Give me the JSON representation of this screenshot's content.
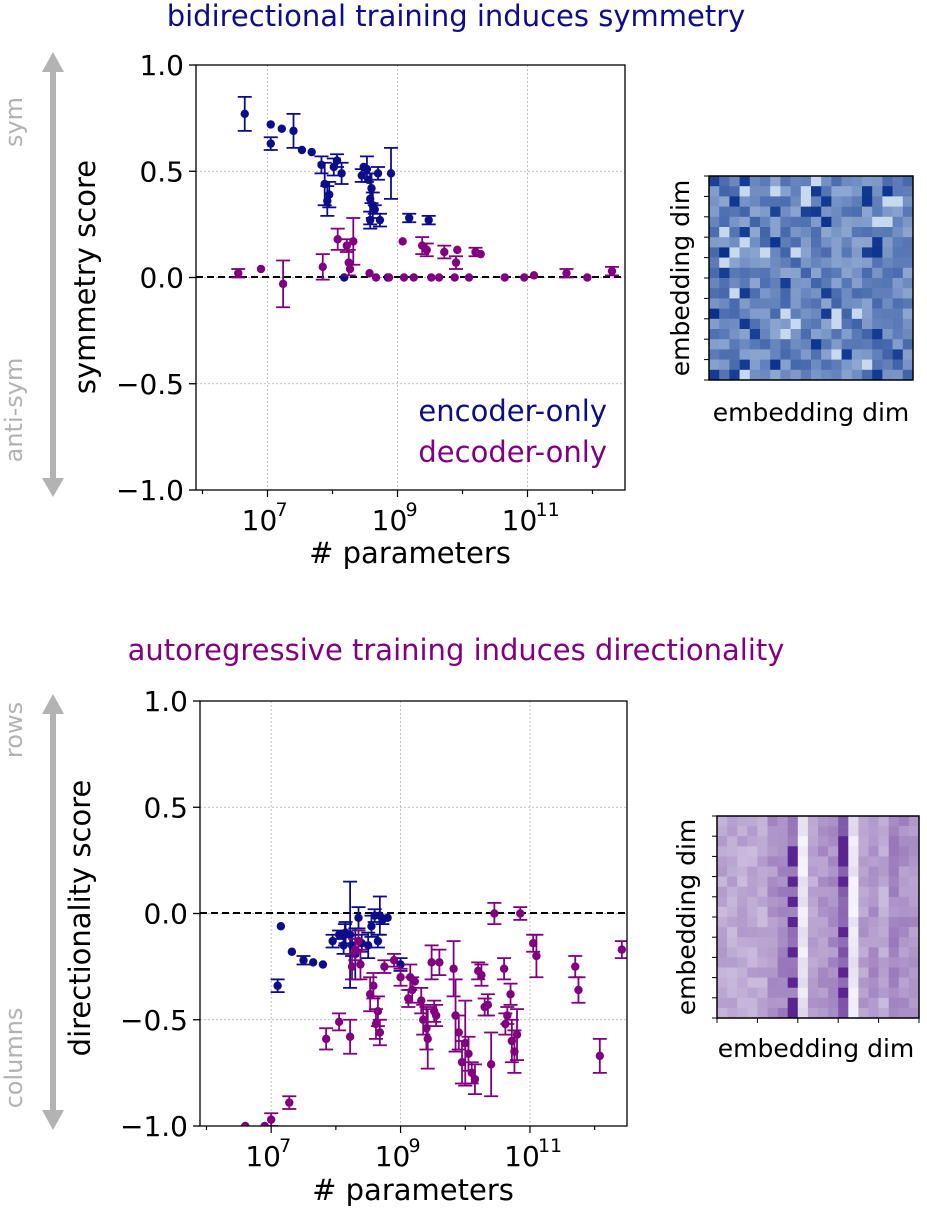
{
  "figure": {
    "top_panel": {
      "title": "bidirectional training induces symmetry",
      "title_color": "#0d0d8a",
      "side_arrow": {
        "top_label": "sym",
        "bottom_label": "anti-sym"
      },
      "heatmap": {
        "xlabel": "embedding dim",
        "ylabel": "embedding dim",
        "colormap": "Blues"
      }
    },
    "bottom_panel": {
      "title": "autoregressive training induces directionality",
      "title_color": "#800080",
      "side_arrow": {
        "top_label": "rows",
        "bottom_label": "columns"
      },
      "heatmap": {
        "xlabel": "embedding dim",
        "ylabel": "embedding dim",
        "colormap": "Purples"
      }
    },
    "colors": {
      "encoder": "#0d0d8a",
      "decoder": "#800080",
      "arrow": "#b3b3b3",
      "grid": "#b0b0b0"
    }
  },
  "chart_data": [
    {
      "type": "scatter",
      "title": "",
      "xlabel": "# parameters",
      "ylabel": "symmetry score",
      "xscale": "log",
      "xlim_log10": [
        5.9,
        12.5
      ],
      "ylim": [
        -1.0,
        1.0
      ],
      "xticks": [
        {
          "exp": 7,
          "base": "10",
          "sup": "7"
        },
        {
          "exp": 9,
          "base": "10",
          "sup": "9"
        },
        {
          "exp": 11,
          "base": "10",
          "sup": "11"
        }
      ],
      "yticks": [
        {
          "value": 1.0,
          "label": "1.0"
        },
        {
          "value": 0.5,
          "label": "0.5"
        },
        {
          "value": 0.0,
          "label": "0.0"
        },
        {
          "value": -0.5,
          "label": "−0.5"
        },
        {
          "value": -1.0,
          "label": "−1.0"
        }
      ],
      "grid": true,
      "zero_line": true,
      "legend": {
        "placement": "bottom-right",
        "style": "colored-text"
      },
      "series": [
        {
          "name": "encoder-only",
          "color": "#0d0d8a",
          "points": [
            [
              6.65,
              0.77,
              0.08
            ],
            [
              7.05,
              0.72,
              0.0
            ],
            [
              7.05,
              0.63,
              0.03
            ],
            [
              7.22,
              0.7,
              0.0
            ],
            [
              7.4,
              0.69,
              0.08
            ],
            [
              7.53,
              0.6,
              0.0
            ],
            [
              7.68,
              0.59,
              0.0
            ],
            [
              7.83,
              0.53,
              0.04
            ],
            [
              7.88,
              0.44,
              0.1
            ],
            [
              7.92,
              0.36,
              0.07
            ],
            [
              7.95,
              0.39,
              0.06
            ],
            [
              8.02,
              0.52,
              0.04
            ],
            [
              8.07,
              0.55,
              0.03
            ],
            [
              8.14,
              0.49,
              0.05
            ],
            [
              8.18,
              0.0,
              0.0
            ],
            [
              8.45,
              0.48,
              0.03
            ],
            [
              8.48,
              0.52,
              0.0
            ],
            [
              8.53,
              0.51,
              0.06
            ],
            [
              8.55,
              0.46,
              0.0
            ],
            [
              8.58,
              0.37,
              0.12
            ],
            [
              8.58,
              0.27,
              0.04
            ],
            [
              8.6,
              0.42,
              0.07
            ],
            [
              8.62,
              0.34,
              0.06
            ],
            [
              8.65,
              0.32,
              0.02
            ],
            [
              8.7,
              0.49,
              0.03
            ],
            [
              8.73,
              0.27,
              0.03
            ],
            [
              8.85,
              0.0,
              0.0
            ],
            [
              8.9,
              0.49,
              0.12
            ],
            [
              9.18,
              0.28,
              0.02
            ],
            [
              9.48,
              0.27,
              0.02
            ]
          ]
        },
        {
          "name": "decoder-only",
          "color": "#800080",
          "points": [
            [
              6.55,
              0.02,
              0.02
            ],
            [
              6.9,
              0.04,
              0.0
            ],
            [
              7.24,
              -0.03,
              0.11
            ],
            [
              7.85,
              0.05,
              0.06
            ],
            [
              8.08,
              0.18,
              0.05
            ],
            [
              8.22,
              0.15,
              0.03
            ],
            [
              8.25,
              0.07,
              0.06
            ],
            [
              8.27,
              0.04,
              0.0
            ],
            [
              8.32,
              0.17,
              0.11
            ],
            [
              8.57,
              0.02,
              0.0
            ],
            [
              8.67,
              0.0,
              0.0
            ],
            [
              8.87,
              0.0,
              0.0
            ],
            [
              9.08,
              0.17,
              0.0
            ],
            [
              9.1,
              0.0,
              0.0
            ],
            [
              9.25,
              0.0,
              0.0
            ],
            [
              9.38,
              0.15,
              0.04
            ],
            [
              9.45,
              0.13,
              0.03
            ],
            [
              9.52,
              0.0,
              0.0
            ],
            [
              9.64,
              0.0,
              0.0
            ],
            [
              9.72,
              0.12,
              0.03
            ],
            [
              9.88,
              0.0,
              0.0
            ],
            [
              9.9,
              0.07,
              0.03
            ],
            [
              9.92,
              0.13,
              0.0
            ],
            [
              10.1,
              0.0,
              0.0
            ],
            [
              10.2,
              0.12,
              0.02
            ],
            [
              10.28,
              0.11,
              0.0
            ],
            [
              10.65,
              0.0,
              0.0
            ],
            [
              10.95,
              0.0,
              0.0
            ],
            [
              11.1,
              0.01,
              0.0
            ],
            [
              11.6,
              0.02,
              0.02
            ],
            [
              11.92,
              0.0,
              0.0
            ],
            [
              12.3,
              0.03,
              0.02
            ]
          ]
        }
      ]
    },
    {
      "type": "scatter",
      "title": "",
      "xlabel": "# parameters",
      "ylabel": "directionality score",
      "xscale": "log",
      "xlim_log10": [
        5.9,
        12.5
      ],
      "ylim": [
        -1.0,
        1.0
      ],
      "xticks": [
        {
          "exp": 7,
          "base": "10",
          "sup": "7"
        },
        {
          "exp": 9,
          "base": "10",
          "sup": "9"
        },
        {
          "exp": 11,
          "base": "10",
          "sup": "11"
        }
      ],
      "yticks": [
        {
          "value": 1.0,
          "label": "1.0"
        },
        {
          "value": 0.5,
          "label": "0.5"
        },
        {
          "value": 0.0,
          "label": "0.0"
        },
        {
          "value": -0.5,
          "label": "−0.5"
        },
        {
          "value": -1.0,
          "label": "−1.0"
        }
      ],
      "grid": true,
      "zero_line": true,
      "series": [
        {
          "name": "encoder-only",
          "color": "#0d0d8a",
          "points": [
            [
              7.1,
              -0.34,
              0.03
            ],
            [
              7.15,
              -0.06,
              0.0
            ],
            [
              7.32,
              -0.18,
              0.0
            ],
            [
              7.5,
              -0.22,
              0.02
            ],
            [
              7.65,
              -0.23,
              0.0
            ],
            [
              7.8,
              -0.24,
              0.0
            ],
            [
              7.95,
              -0.13,
              0.03
            ],
            [
              8.05,
              -0.1,
              0.02
            ],
            [
              8.12,
              -0.15,
              0.04
            ],
            [
              8.14,
              -0.1,
              0.05
            ],
            [
              8.15,
              -0.09,
              0.05
            ],
            [
              8.22,
              -0.1,
              0.25
            ],
            [
              8.25,
              -0.15,
              0.05
            ],
            [
              8.3,
              -0.19,
              0.12
            ],
            [
              8.35,
              -0.02,
              0.05
            ],
            [
              8.4,
              -0.14,
              0.04
            ],
            [
              8.5,
              -0.15,
              0.06
            ],
            [
              8.55,
              -0.06,
              0.05
            ],
            [
              8.6,
              -0.01,
              0.03
            ],
            [
              8.65,
              -0.13,
              0.03
            ],
            [
              8.68,
              -0.01,
              0.09
            ],
            [
              8.72,
              -0.03,
              0.02
            ],
            [
              8.8,
              -0.02,
              0.0
            ],
            [
              9.0,
              -0.24,
              0.03
            ]
          ]
        },
        {
          "name": "decoder-only",
          "color": "#800080",
          "points": [
            [
              6.6,
              -1.0,
              0.0
            ],
            [
              6.9,
              -1.0,
              0.0
            ],
            [
              7.0,
              -0.97,
              0.03
            ],
            [
              7.28,
              -0.89,
              0.03
            ],
            [
              7.85,
              -0.59,
              0.05
            ],
            [
              8.05,
              -0.51,
              0.04
            ],
            [
              8.22,
              -0.58,
              0.08
            ],
            [
              8.25,
              -0.25,
              0.06
            ],
            [
              8.3,
              -0.17,
              0.05
            ],
            [
              8.35,
              -0.13,
              0.05
            ],
            [
              8.38,
              -0.24,
              0.07
            ],
            [
              8.53,
              -0.38,
              0.08
            ],
            [
              8.58,
              -0.34,
              0.06
            ],
            [
              8.62,
              -0.52,
              0.07
            ],
            [
              8.65,
              -0.46,
              0.07
            ],
            [
              8.68,
              -0.56,
              0.06
            ],
            [
              8.75,
              -0.25,
              0.03
            ],
            [
              8.9,
              -0.22,
              0.03
            ],
            [
              9.0,
              -0.3,
              0.04
            ],
            [
              9.12,
              -0.4,
              0.04
            ],
            [
              9.15,
              -0.3,
              0.06
            ],
            [
              9.18,
              -0.36,
              0.06
            ],
            [
              9.22,
              -0.32,
              0.0
            ],
            [
              9.32,
              -0.41,
              0.06
            ],
            [
              9.35,
              -0.5,
              0.07
            ],
            [
              9.4,
              -0.54,
              0.1
            ],
            [
              9.42,
              -0.59,
              0.14
            ],
            [
              9.48,
              -0.23,
              0.08
            ],
            [
              9.52,
              -0.46,
              0.05
            ],
            [
              9.55,
              -0.48,
              0.05
            ],
            [
              9.6,
              -0.23,
              0.06
            ],
            [
              9.82,
              -0.26,
              0.13
            ],
            [
              9.85,
              -0.48,
              0.17
            ],
            [
              9.9,
              -0.56,
              0.08
            ],
            [
              9.95,
              -0.7,
              0.1
            ],
            [
              10.0,
              -0.61,
              0.2
            ],
            [
              10.05,
              -0.66,
              0.08
            ],
            [
              10.1,
              -0.75,
              0.05
            ],
            [
              10.15,
              -0.78,
              0.07
            ],
            [
              10.2,
              -0.27,
              0.04
            ],
            [
              10.25,
              -0.29,
              0.05
            ],
            [
              10.3,
              -0.44,
              0.04
            ],
            [
              10.35,
              -0.43,
              0.05
            ],
            [
              10.4,
              -0.71,
              0.15
            ],
            [
              10.45,
              0.0,
              0.05
            ],
            [
              10.6,
              -0.26,
              0.05
            ],
            [
              10.62,
              -0.52,
              0.05
            ],
            [
              10.65,
              -0.48,
              0.04
            ],
            [
              10.7,
              -0.38,
              0.05
            ],
            [
              10.72,
              -0.6,
              0.1
            ],
            [
              10.76,
              -0.65,
              0.1
            ],
            [
              10.8,
              -0.57,
              0.12
            ],
            [
              10.85,
              0.0,
              0.03
            ],
            [
              11.05,
              -0.14,
              0.04
            ],
            [
              11.1,
              -0.2,
              0.1
            ],
            [
              11.7,
              -0.25,
              0.05
            ],
            [
              11.75,
              -0.36,
              0.06
            ],
            [
              12.08,
              -0.67,
              0.08
            ],
            [
              12.42,
              -0.17,
              0.04
            ]
          ]
        }
      ]
    }
  ]
}
